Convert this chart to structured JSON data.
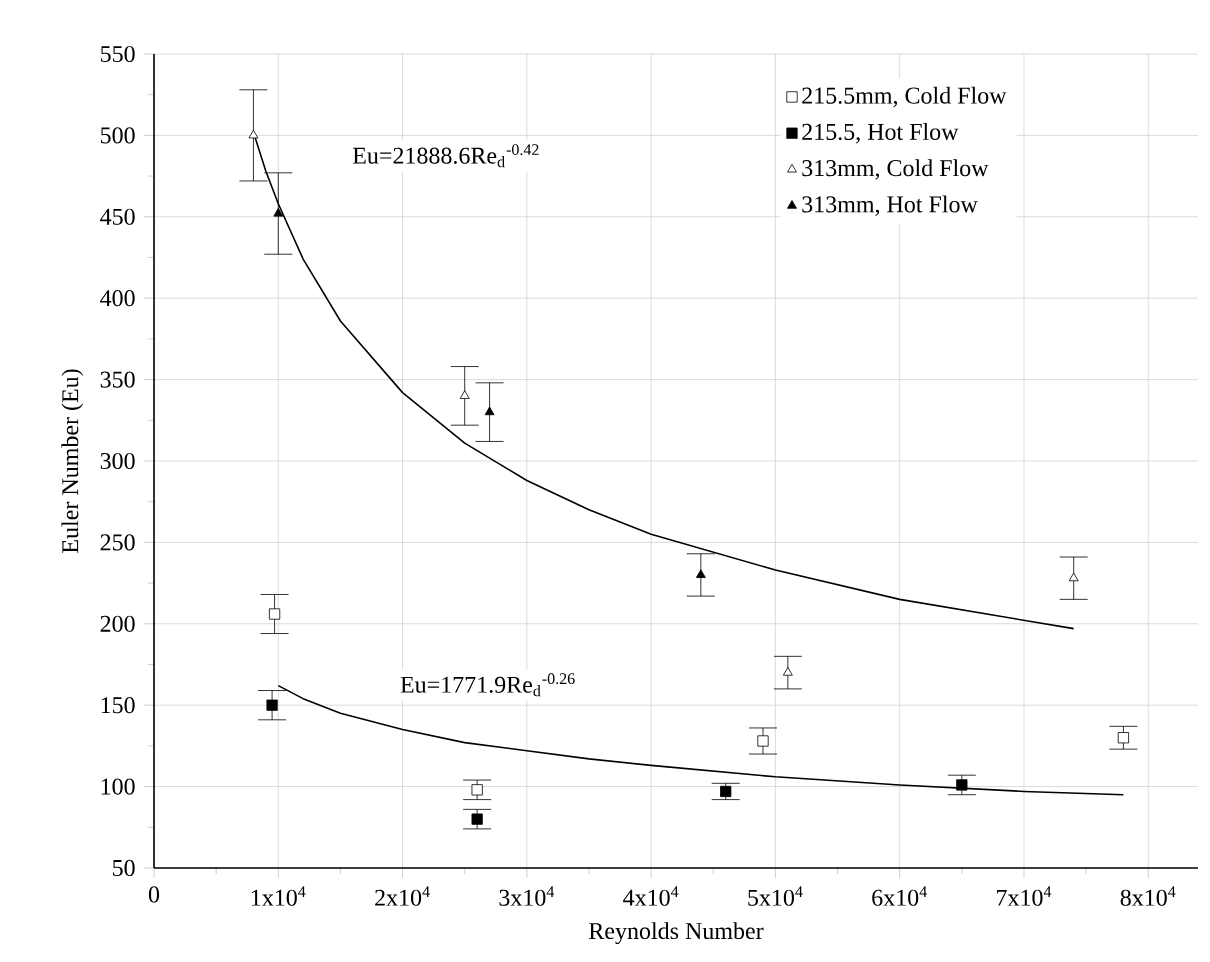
{
  "chart_data": {
    "type": "scatter",
    "xlabel": "Reynolds Number",
    "ylabel": "Euler Number (Eu)",
    "xlim": [
      0,
      84000
    ],
    "ylim": [
      50,
      550
    ],
    "xticks": [
      0,
      {
        "value": 10000,
        "label": "1x10$^{4}$"
      },
      {
        "value": 20000,
        "label": "2x10$^{4}$"
      },
      {
        "value": 30000,
        "label": "3x10$^{4}$"
      },
      {
        "value": 40000,
        "label": "4x10$^{4}$"
      },
      {
        "value": 50000,
        "label": "5x10$^{4}$"
      },
      {
        "value": 60000,
        "label": "6x10$^{4}$"
      },
      {
        "value": 70000,
        "label": "7x10$^{4}$"
      },
      {
        "value": 80000,
        "label": "8x10$^{4}$"
      }
    ],
    "yticks": [
      50,
      100,
      150,
      200,
      250,
      300,
      350,
      400,
      450,
      500,
      550
    ],
    "grid": true,
    "legend": "top right",
    "series": [
      {
        "name": "215.5mm, Cold Flow",
        "color": "#ffffff",
        "marker": "square",
        "x": [
          9700,
          26000,
          49000,
          78000
        ],
        "values": [
          206,
          98,
          128,
          130
        ],
        "errors": [
          12,
          6,
          8,
          7
        ]
      },
      {
        "name": "215.5, Hot Flow",
        "color": "#000000",
        "marker": "square",
        "x": [
          9500,
          26000,
          46000,
          65000
        ],
        "values": [
          150,
          80,
          97,
          101
        ],
        "errors": [
          9,
          6,
          5,
          6
        ]
      },
      {
        "name": "313mm, Cold Flow",
        "color": "#ffffff",
        "marker": "triangle",
        "x": [
          8000,
          25000,
          51000,
          74000
        ],
        "values": [
          500,
          340,
          170,
          228
        ],
        "errors": [
          28,
          18,
          10,
          13
        ]
      },
      {
        "name": "313mm, Hot Flow",
        "color": "#000000",
        "marker": "triangle",
        "x": [
          10000,
          27000,
          44000
        ],
        "values": [
          452,
          330,
          230
        ],
        "errors": [
          25,
          18,
          13
        ]
      },
      {
        "type": "line",
        "color": "#000000",
        "marker": "none",
        "x": [
          8000,
          9000,
          10000,
          12000,
          15000,
          20000,
          25000,
          30000,
          35000,
          40000,
          50000,
          60000,
          74000
        ],
        "values": [
          502,
          478,
          458,
          424,
          386,
          342,
          311,
          288,
          270,
          255,
          233,
          215,
          197
        ]
      },
      {
        "type": "line",
        "color": "#000000",
        "marker": "none",
        "x": [
          10000,
          12000,
          15000,
          20000,
          25000,
          30000,
          35000,
          40000,
          50000,
          60000,
          70000,
          78000
        ],
        "values": [
          162,
          154,
          145,
          135,
          127,
          122,
          117,
          113,
          106,
          101,
          97,
          95
        ]
      }
    ],
    "annotations": [
      "Eu=21888.6Re$_{d}$$^{-0.42}$",
      "Eu=1771.9Re$_{d}$$^{-0.26}$"
    ]
  }
}
